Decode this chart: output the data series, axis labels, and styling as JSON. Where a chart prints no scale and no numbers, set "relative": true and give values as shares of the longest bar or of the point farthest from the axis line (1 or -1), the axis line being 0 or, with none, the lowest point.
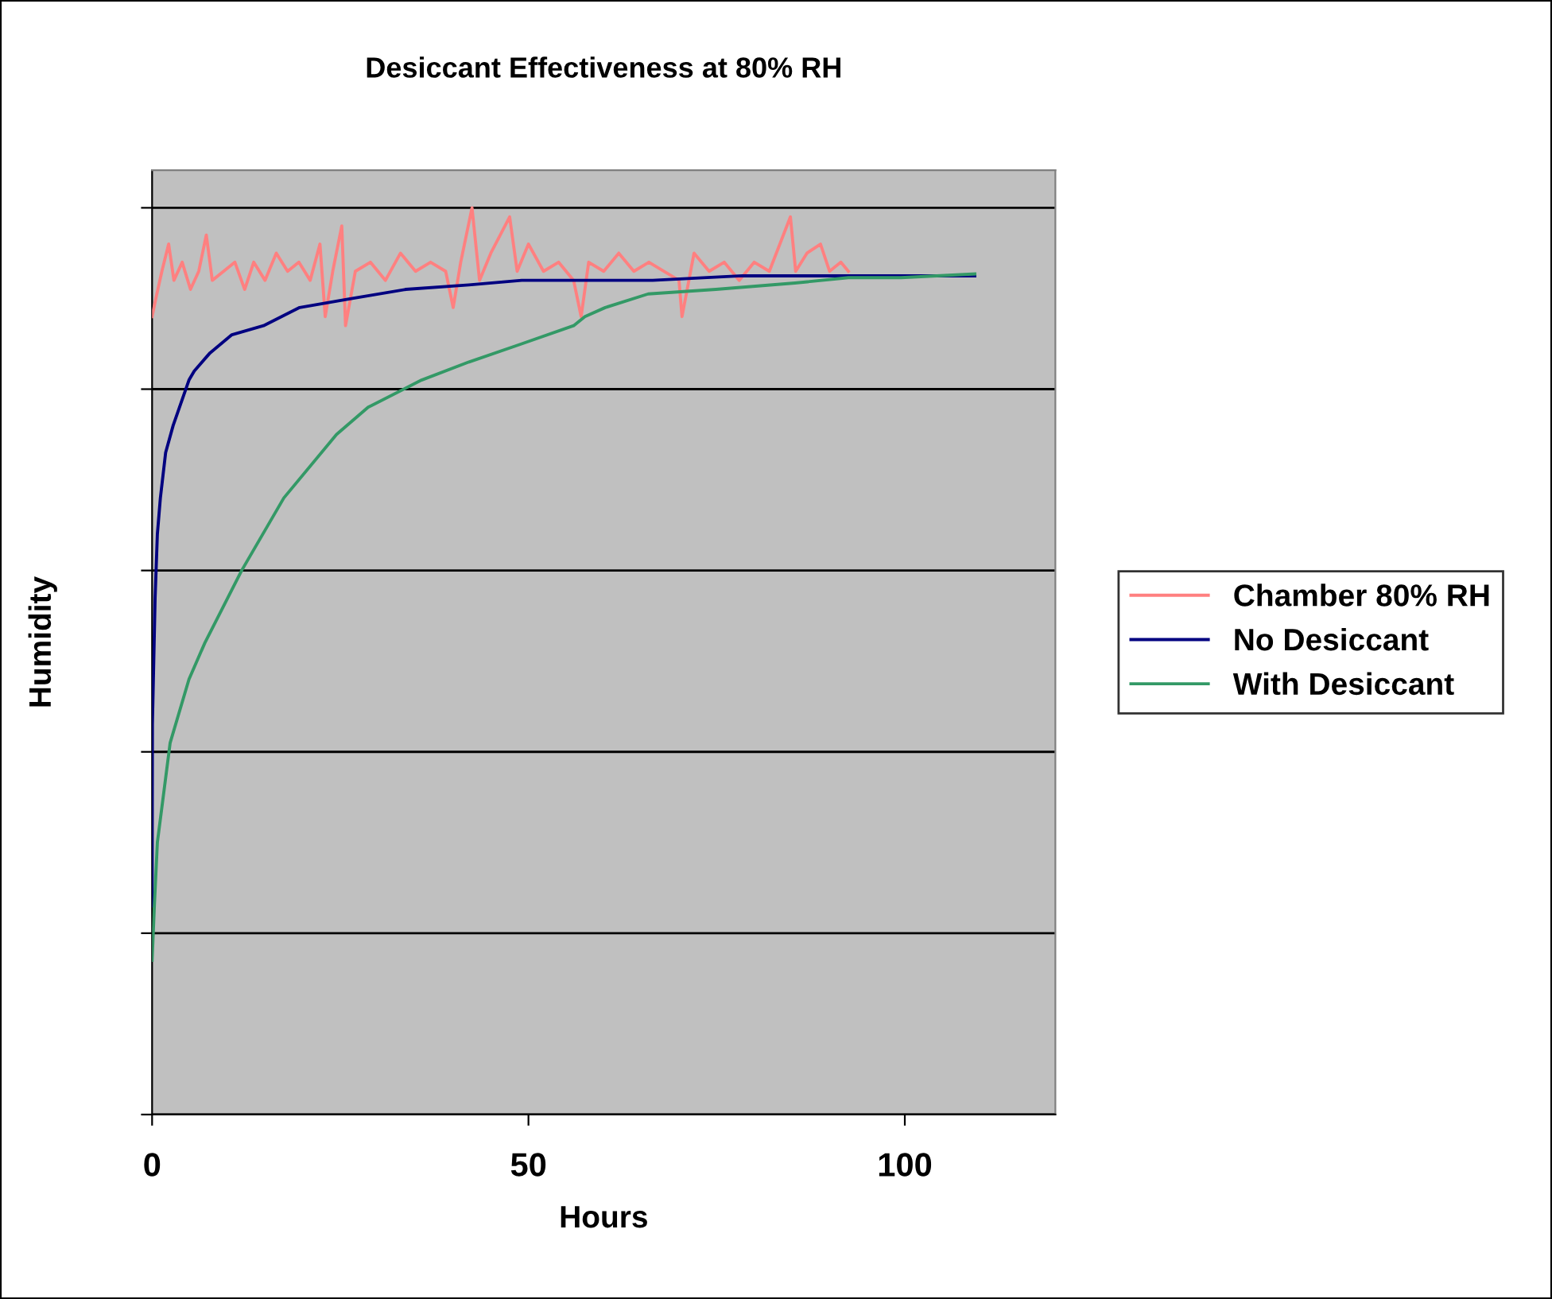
{
  "chart_data": {
    "type": "line",
    "title": "Desiccant Effectiveness at 80% RH",
    "xlabel": "Hours",
    "ylabel": "Humidity",
    "relative": true,
    "xlim": [
      0,
      120
    ],
    "xticks": [
      0,
      50,
      100
    ],
    "tick_labels": "x",
    "grid": "y",
    "legend": "right",
    "marker": "none",
    "line_style": "solid",
    "series": [
      {
        "name": "Chamber 80% RH",
        "color": "#ff8080",
        "x": [
          0,
          0.5,
          1.3,
          2.2,
          2.9,
          4.0,
          5.1,
          6.2,
          7.2,
          8.0,
          9.5,
          11.0,
          12.3,
          13.5,
          15.0,
          16.5,
          18.0,
          19.5,
          21.0,
          22.3,
          23.0,
          24.0,
          25.2,
          25.7,
          27,
          29,
          31,
          33,
          35,
          37,
          39,
          40,
          41,
          42.5,
          43.5,
          45,
          47.5,
          48.5,
          50,
          52,
          54,
          56,
          57,
          58,
          60,
          62,
          64,
          66,
          70,
          70.4,
          72,
          74,
          76,
          78,
          80,
          82,
          84.8,
          85.5,
          87,
          88.8,
          90,
          91.5,
          92.5
        ],
        "values": [
          0.88,
          0.9,
          0.93,
          0.96,
          0.92,
          0.94,
          0.91,
          0.93,
          0.97,
          0.92,
          0.93,
          0.94,
          0.91,
          0.94,
          0.92,
          0.95,
          0.93,
          0.94,
          0.92,
          0.96,
          0.88,
          0.93,
          0.98,
          0.87,
          0.93,
          0.94,
          0.92,
          0.95,
          0.93,
          0.94,
          0.93,
          0.89,
          0.94,
          1.0,
          0.92,
          0.95,
          0.99,
          0.93,
          0.96,
          0.93,
          0.94,
          0.92,
          0.88,
          0.94,
          0.93,
          0.95,
          0.93,
          0.94,
          0.92,
          0.88,
          0.95,
          0.93,
          0.94,
          0.92,
          0.94,
          0.93,
          0.99,
          0.93,
          0.95,
          0.96,
          0.93,
          0.94,
          0.93
        ]
      },
      {
        "name": "No Desiccant",
        "color": "#000080",
        "x": [
          0,
          0.04,
          0.4,
          0.7,
          1.1,
          1.8,
          2.8,
          4.9,
          5.6,
          7.7,
          10.6,
          14.8,
          19.6,
          26.6,
          33.7,
          42.1,
          49.1,
          57.4,
          66.5,
          78.4,
          92.5,
          109.3
        ],
        "values": [
          0.23,
          0.43,
          0.57,
          0.64,
          0.68,
          0.73,
          0.76,
          0.81,
          0.82,
          0.84,
          0.86,
          0.87,
          0.89,
          0.9,
          0.91,
          0.915,
          0.92,
          0.92,
          0.92,
          0.925,
          0.925,
          0.925
        ]
      },
      {
        "name": "With Desiccant",
        "color": "#339966",
        "x": [
          0,
          0.3,
          0.7,
          2.4,
          4.9,
          7.0,
          11.9,
          17.5,
          24.5,
          28.7,
          35.8,
          42.1,
          49.1,
          56.0,
          57.5,
          60.2,
          65.9,
          74.9,
          85.4,
          92.5,
          99.5,
          109.3
        ],
        "values": [
          0.17,
          0.23,
          0.3,
          0.41,
          0.48,
          0.52,
          0.6,
          0.68,
          0.75,
          0.78,
          0.81,
          0.83,
          0.85,
          0.87,
          0.88,
          0.89,
          0.905,
          0.91,
          0.917,
          0.923,
          0.923,
          0.927
        ]
      }
    ]
  }
}
